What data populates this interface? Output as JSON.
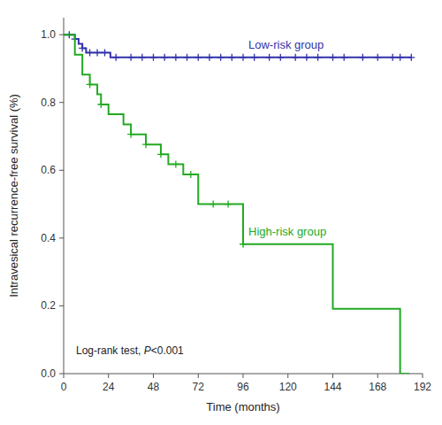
{
  "chart_data": {
    "type": "step",
    "xlabel": "Time (months)",
    "ylabel": "Intravesical recurrence-free survival (%)",
    "xlim": [
      0,
      192
    ],
    "ylim": [
      0.0,
      1.05
    ],
    "xticks": [
      0,
      24,
      48,
      72,
      96,
      120,
      144,
      168,
      192
    ],
    "yticks": [
      {
        "value": 0.0,
        "label": "0.0"
      },
      0.2,
      0.4,
      0.6,
      0.8,
      {
        "value": 1.0,
        "label": "1.0"
      }
    ],
    "grid": false,
    "annotation": [
      "Log-rank test, ",
      "P",
      "<0.001"
    ],
    "series": [
      {
        "name": "Low-risk group",
        "color": "#3333aa",
        "x": [
          0,
          3,
          6,
          8,
          10,
          12,
          14,
          16,
          18,
          22,
          25,
          30,
          36,
          42,
          48,
          54,
          60,
          66,
          72,
          78,
          84,
          90,
          96,
          102,
          108,
          114,
          120,
          126,
          132,
          138,
          144,
          150,
          156,
          162,
          168,
          174,
          180,
          186
        ],
        "values": [
          1.0,
          1.0,
          0.987,
          0.973,
          0.96,
          0.947,
          0.947,
          0.947,
          0.947,
          0.947,
          0.933,
          0.933,
          0.933,
          0.933,
          0.933,
          0.933,
          0.933,
          0.933,
          0.933,
          0.933,
          0.933,
          0.933,
          0.933,
          0.933,
          0.933,
          0.933,
          0.933,
          0.933,
          0.933,
          0.933,
          0.933,
          0.933,
          0.933,
          0.933,
          0.933,
          0.933,
          0.933,
          0.933
        ],
        "censor_x": [
          3,
          6,
          10,
          14,
          18,
          22,
          28,
          36,
          42,
          48,
          54,
          60,
          66,
          72,
          78,
          84,
          90,
          96,
          102,
          110,
          116,
          124,
          130,
          136,
          144,
          150,
          160,
          168,
          176,
          180,
          186
        ],
        "censor_values": [
          1.0,
          0.987,
          0.96,
          0.947,
          0.947,
          0.947,
          0.933,
          0.933,
          0.933,
          0.933,
          0.933,
          0.933,
          0.933,
          0.933,
          0.933,
          0.933,
          0.933,
          0.933,
          0.933,
          0.933,
          0.933,
          0.933,
          0.933,
          0.933,
          0.933,
          0.933,
          0.933,
          0.933,
          0.933,
          0.933,
          0.933
        ]
      },
      {
        "name": "High-risk group",
        "color": "#22aa22",
        "x": [
          0,
          6,
          10,
          14,
          18,
          20,
          24,
          28,
          32,
          36,
          40,
          44,
          48,
          52,
          56,
          60,
          64,
          68,
          72,
          76,
          80,
          84,
          88,
          92,
          96,
          100,
          104,
          108,
          112,
          116,
          120,
          144,
          168,
          180,
          185
        ],
        "values": [
          1.0,
          0.941,
          0.882,
          0.853,
          0.824,
          0.794,
          0.765,
          0.765,
          0.735,
          0.706,
          0.706,
          0.676,
          0.676,
          0.647,
          0.618,
          0.618,
          0.588,
          0.588,
          0.5,
          0.5,
          0.5,
          0.5,
          0.5,
          0.5,
          0.382,
          0.382,
          0.382,
          0.382,
          0.382,
          0.382,
          0.382,
          0.191,
          0.191,
          0.0,
          0.0
        ],
        "censor_x": [
          14,
          20,
          36,
          44,
          52,
          60,
          68,
          80,
          88,
          96
        ],
        "censor_values": [
          0.853,
          0.794,
          0.706,
          0.676,
          0.647,
          0.618,
          0.588,
          0.5,
          0.5,
          0.382
        ]
      }
    ]
  }
}
